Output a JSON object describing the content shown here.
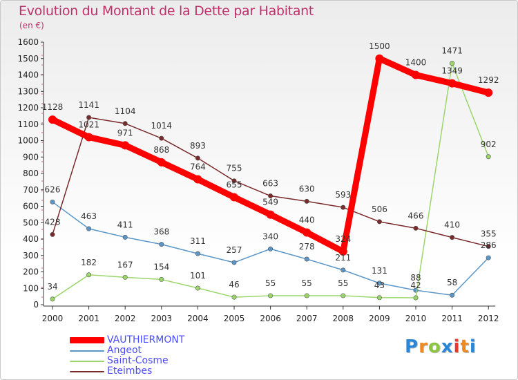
{
  "title": "Evolution du Montant de la Dette par Habitant",
  "subtitle": "(en €)",
  "logo": {
    "letters": [
      "P",
      "r",
      "o",
      "x",
      "i",
      "t",
      "i"
    ],
    "colors": [
      "#2a87d8",
      "#f08a1e",
      "#8cc63f",
      "#2a87d8",
      "#e83a2e",
      "#f08a1e",
      "#2a87d8"
    ]
  },
  "chart_data": {
    "type": "line",
    "x": [
      "2000",
      "2001",
      "2002",
      "2003",
      "2004",
      "2005",
      "2006",
      "2007",
      "2008",
      "2009",
      "2010",
      "2011",
      "2012"
    ],
    "ylim": [
      0,
      1600
    ],
    "yticks": [
      0,
      100,
      200,
      300,
      400,
      500,
      600,
      700,
      800,
      900,
      1000,
      1100,
      1200,
      1300,
      1400,
      1500,
      1600
    ],
    "grid": false,
    "legend_position": "bottom-left",
    "series": [
      {
        "name": "VAUTHIERMONT",
        "color": "#ff0000",
        "width": 9,
        "values": [
          1128,
          1021,
          971,
          868,
          764,
          655,
          549,
          440,
          324,
          1500,
          1400,
          1349,
          1292
        ]
      },
      {
        "name": "Angeot",
        "color": "#5a96c8",
        "width": 1.5,
        "values": [
          626,
          463,
          411,
          368,
          311,
          257,
          340,
          278,
          211,
          131,
          88,
          58,
          286
        ]
      },
      {
        "name": "Saint-Cosme",
        "color": "#9ad66a",
        "width": 1.5,
        "values": [
          34,
          182,
          167,
          154,
          101,
          46,
          55,
          55,
          55,
          43,
          42,
          1471,
          902
        ]
      },
      {
        "name": "Eteimbes",
        "color": "#7a2a2a",
        "width": 1.5,
        "values": [
          428,
          1141,
          1104,
          1014,
          893,
          755,
          663,
          630,
          593,
          506,
          466,
          410,
          355
        ]
      }
    ]
  }
}
